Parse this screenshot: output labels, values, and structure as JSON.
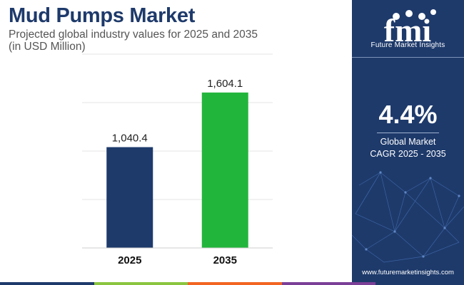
{
  "chart_data": {
    "type": "bar",
    "title": "Mud Pumps Market",
    "subtitle": "Projected global industry values for 2025 and 2035",
    "unit_note": "(in USD Million)",
    "categories": [
      "2025",
      "2035"
    ],
    "values": [
      1040.4,
      1604.1
    ],
    "value_labels": [
      "1,040.4",
      "1,604.1"
    ],
    "bar_colors": [
      "#1e3a6b",
      "#22b53c"
    ],
    "ylim": [
      0,
      2000
    ],
    "grid": true,
    "xlabel": "",
    "ylabel": ""
  },
  "sidebar": {
    "logo_text": "fmi",
    "brand": "Future Market Insights",
    "cagr_value": "4.4%",
    "cagr_line1": "Global Market",
    "cagr_line2": "CAGR 2025 - 2035",
    "url": "www.futuremarketinsights.com"
  },
  "colors": {
    "navy": "#1e3a6b",
    "green": "#22b53c",
    "bottom_bar": [
      "#1e3a6b",
      "#8bc53f",
      "#f26522",
      "#7b3f97",
      "#1e3a6b"
    ]
  }
}
